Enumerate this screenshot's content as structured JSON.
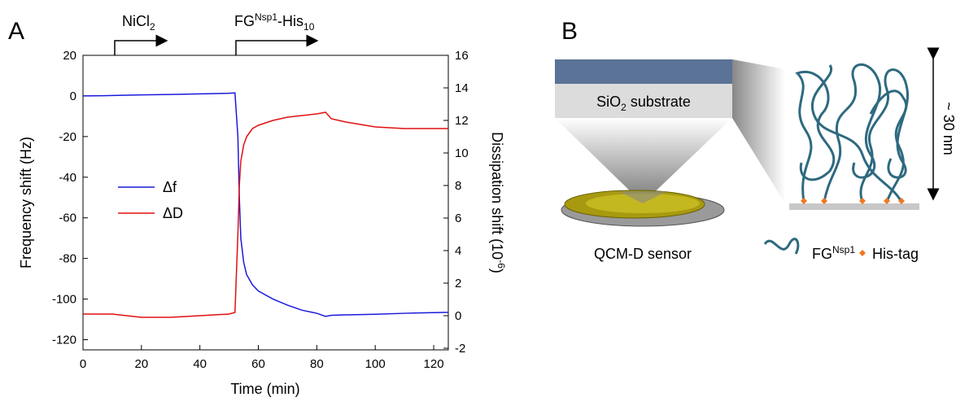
{
  "panel_labels": [
    "A",
    "B"
  ],
  "chart_data": {
    "type": "line",
    "x_label": "Time (min)",
    "y_label": "Frequency shift (Hz)",
    "y2_label": {
      "text": "Dissipation shift (10",
      "sup": "-6",
      "end": ")"
    },
    "annotations": [
      {
        "text": "NiCl",
        "sub": "2"
      },
      {
        "text": "FG",
        "sup": "Nsp1",
        "mid": "-His",
        "sub": "10"
      }
    ],
    "x": [
      0,
      10,
      20,
      30,
      40,
      50,
      52,
      53,
      53.5,
      54,
      55,
      56,
      58,
      60,
      65,
      70,
      75,
      80,
      83,
      85,
      90,
      100,
      110,
      125
    ],
    "series": [
      {
        "name": "Δf",
        "color": "#1a1adb",
        "values": [
          0,
          0.2,
          0.5,
          0.7,
          1,
          1.3,
          1.5,
          -20,
          -50,
          -70,
          -82,
          -88,
          -93,
          -96,
          -100,
          -103,
          -105.5,
          -107,
          -108.5,
          -108,
          -107.8,
          -107.5,
          -107,
          -106.5
        ]
      },
      {
        "name": "ΔD",
        "color": "#e01010",
        "axis": "y2",
        "values": [
          0.1,
          0.1,
          -0.1,
          -0.1,
          0,
          0.1,
          0.2,
          5,
          8,
          9.5,
          10.5,
          11,
          11.5,
          11.7,
          12,
          12.2,
          12.3,
          12.4,
          12.5,
          12.1,
          11.9,
          11.6,
          11.5,
          11.5
        ]
      }
    ],
    "xlim": [
      0,
      125
    ],
    "xticks": [
      0,
      20,
      40,
      60,
      80,
      100,
      120
    ],
    "ylim": [
      -125,
      20
    ],
    "yticks": [
      -120,
      -100,
      -80,
      -60,
      -40,
      -20,
      0,
      20
    ],
    "y2lim": [
      -2.1,
      16
    ],
    "y2ticks": [
      -2,
      0,
      2,
      4,
      6,
      8,
      10,
      12,
      14,
      16
    ]
  },
  "diagram": {
    "substrate": {
      "text": "SiO",
      "sub": "2",
      "end": " substrate"
    },
    "sensor": "QCM-D sensor",
    "thickness": "~ 30 nm",
    "legend_polymer": {
      "text": "FG",
      "sup": "Nsp1"
    },
    "legend_tag": "His-tag"
  }
}
